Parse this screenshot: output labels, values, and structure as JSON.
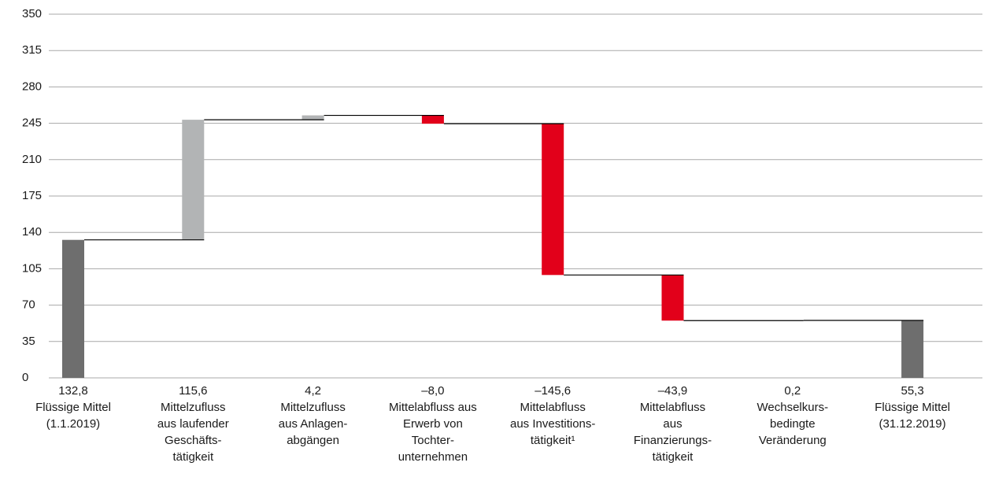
{
  "chart_data": {
    "type": "waterfall",
    "categories": [
      [
        "Flüssige Mittel",
        "(1.1.2019)"
      ],
      [
        "Mittelzufluss",
        "aus laufender",
        "Geschäfts-",
        "tätigkeit"
      ],
      [
        "Mittelzufluss",
        "aus Anlagen-",
        "abgängen"
      ],
      [
        "Mittelabfluss aus",
        "Erwerb von",
        "Tochter-",
        "unternehmen"
      ],
      [
        "Mittelabfluss",
        "aus Investitions-",
        "tätigkeit¹"
      ],
      [
        "Mittelabfluss",
        "aus",
        "Finanzierungs-",
        "tätigkeit"
      ],
      [
        "Wechselkurs-",
        "bedingte",
        "Veränderung"
      ],
      [
        "Flüssige Mittel",
        "(31.12.2019)"
      ]
    ],
    "values": [
      132.8,
      115.6,
      4.2,
      -8.0,
      -145.6,
      -43.9,
      0.2,
      55.3
    ],
    "value_labels": [
      "132,8",
      "115,6",
      "4,2",
      "–8,0",
      "–145,6",
      "–43,9",
      "0,2",
      "55,3"
    ],
    "measure": [
      "absolute",
      "relative",
      "relative",
      "relative",
      "relative",
      "relative",
      "relative",
      "total"
    ],
    "colors": [
      "#6e6e6e",
      "#b2b4b5",
      "#b2b4b5",
      "#e2001a",
      "#e2001a",
      "#e2001a",
      "#b2b4b5",
      "#6e6e6e"
    ],
    "ylim": [
      0,
      350
    ],
    "yticks": [
      0,
      35,
      70,
      105,
      140,
      175,
      210,
      245,
      280,
      315,
      350
    ],
    "grid": true
  }
}
